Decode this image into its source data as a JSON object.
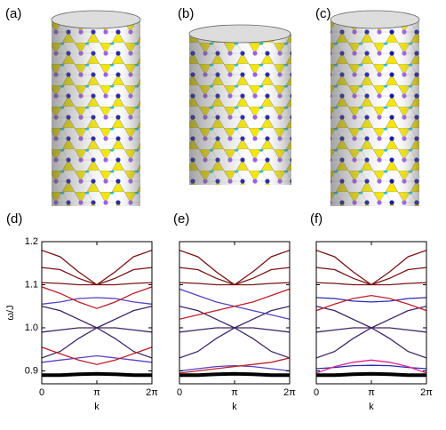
{
  "panel_labels": [
    "(a)",
    "(b)",
    "(c)"
  ],
  "chart_data": [
    {
      "type": "line",
      "label": "(d)",
      "x_label": "k",
      "y_label": "ω/J",
      "x": [
        0,
        1.047,
        2.094,
        3.142,
        4.189,
        5.236,
        6.283
      ],
      "xlim": [
        0,
        6.283
      ],
      "xticks": [
        0,
        {
          "value": 3.142,
          "label": "π"
        },
        {
          "value": 6.283,
          "label": "2π"
        }
      ],
      "ylim": [
        0.87,
        1.2
      ],
      "yticks": [
        0.9,
        {
          "value": 1,
          "label": "1.0"
        },
        1.1,
        1.2
      ],
      "show_ytick_labels": true,
      "series": [
        {
          "color": "#7a1414",
          "values": [
            1.18,
            1.165,
            1.13,
            1.1,
            1.13,
            1.165,
            1.18
          ]
        },
        {
          "color": "#7a1414",
          "values": [
            1.14,
            1.135,
            1.115,
            1.1,
            1.115,
            1.135,
            1.14
          ]
        },
        {
          "color": "#7a1414",
          "values": [
            1.105,
            1.103,
            1.1,
            1.1,
            1.1,
            1.103,
            1.105
          ]
        },
        {
          "color": "#3d2466",
          "values": [
            1.05,
            1.04,
            1.02,
            1.0,
            1.02,
            1.04,
            1.05
          ]
        },
        {
          "color": "#3d2466",
          "values": [
            0.99,
            0.995,
            1.0,
            1.0,
            1.0,
            0.995,
            0.99
          ]
        },
        {
          "color": "#3d2466",
          "values": [
            0.93,
            0.945,
            0.975,
            1.0,
            0.975,
            0.945,
            0.93
          ]
        },
        {
          "color": "#000000",
          "values": [
            0.89,
            0.89,
            0.892,
            0.893,
            0.892,
            0.89,
            0.89
          ]
        },
        {
          "color": "#5a3fc0",
          "values": [
            1.055,
            1.06,
            1.068,
            1.07,
            1.068,
            1.06,
            1.055
          ]
        },
        {
          "color": "#c0202a",
          "values": [
            1.095,
            1.08,
            1.06,
            1.045,
            1.06,
            1.08,
            1.095
          ]
        },
        {
          "color": "#5a3fc0",
          "values": [
            0.92,
            0.925,
            0.93,
            0.935,
            0.93,
            0.925,
            0.92
          ]
        },
        {
          "color": "#c0202a",
          "values": [
            0.955,
            0.94,
            0.925,
            0.915,
            0.925,
            0.94,
            0.955
          ]
        }
      ]
    },
    {
      "type": "line",
      "label": "(e)",
      "x_label": "k",
      "x": [
        0,
        1.047,
        2.094,
        3.142,
        4.189,
        5.236,
        6.283
      ],
      "xlim": [
        0,
        6.283
      ],
      "xticks": [
        0,
        {
          "value": 3.142,
          "label": "π"
        },
        {
          "value": 6.283,
          "label": "2π"
        }
      ],
      "ylim": [
        0.87,
        1.2
      ],
      "yticks": [
        0.9,
        1,
        1.1,
        1.2
      ],
      "show_ytick_labels": false,
      "series": [
        {
          "color": "#7a1414",
          "values": [
            1.18,
            1.165,
            1.13,
            1.1,
            1.13,
            1.165,
            1.18
          ]
        },
        {
          "color": "#7a1414",
          "values": [
            1.14,
            1.135,
            1.115,
            1.1,
            1.115,
            1.135,
            1.14
          ]
        },
        {
          "color": "#7a1414",
          "values": [
            1.105,
            1.103,
            1.1,
            1.1,
            1.1,
            1.103,
            1.105
          ]
        },
        {
          "color": "#3d2466",
          "values": [
            1.05,
            1.04,
            1.02,
            1.0,
            1.02,
            1.04,
            1.05
          ]
        },
        {
          "color": "#3d2466",
          "values": [
            0.99,
            0.995,
            1.0,
            1.0,
            1.0,
            0.995,
            0.99
          ]
        },
        {
          "color": "#3d2466",
          "values": [
            0.93,
            0.945,
            0.975,
            1.0,
            0.975,
            0.945,
            0.93
          ]
        },
        {
          "color": "#000000",
          "values": [
            0.89,
            0.89,
            0.892,
            0.893,
            0.892,
            0.89,
            0.89
          ]
        },
        {
          "color": "#5a3fc0",
          "values": [
            1.09,
            1.075,
            1.06,
            1.05,
            1.04,
            1.03,
            1.02
          ]
        },
        {
          "color": "#c0202a",
          "values": [
            1.02,
            1.03,
            1.04,
            1.05,
            1.06,
            1.075,
            1.09
          ]
        },
        {
          "color": "#5a3fc0",
          "values": [
            0.9,
            0.905,
            0.91,
            0.912,
            0.91,
            0.905,
            0.9
          ]
        },
        {
          "color": "#c0202a",
          "values": [
            0.895,
            0.9,
            0.905,
            0.91,
            0.915,
            0.92,
            0.93
          ]
        }
      ]
    },
    {
      "type": "line",
      "label": "(f)",
      "x_label": "k",
      "x": [
        0,
        1.047,
        2.094,
        3.142,
        4.189,
        5.236,
        6.283
      ],
      "xlim": [
        0,
        6.283
      ],
      "xticks": [
        0,
        {
          "value": 3.142,
          "label": "π"
        },
        {
          "value": 6.283,
          "label": "2π"
        }
      ],
      "ylim": [
        0.87,
        1.2
      ],
      "yticks": [
        0.9,
        1,
        1.1,
        1.2
      ],
      "show_ytick_labels": false,
      "series": [
        {
          "color": "#7a1414",
          "values": [
            1.18,
            1.165,
            1.13,
            1.1,
            1.13,
            1.165,
            1.18
          ]
        },
        {
          "color": "#7a1414",
          "values": [
            1.14,
            1.135,
            1.115,
            1.1,
            1.115,
            1.135,
            1.14
          ]
        },
        {
          "color": "#7a1414",
          "values": [
            1.105,
            1.103,
            1.1,
            1.1,
            1.1,
            1.103,
            1.105
          ]
        },
        {
          "color": "#3d2466",
          "values": [
            1.05,
            1.04,
            1.02,
            1.0,
            1.02,
            1.04,
            1.05
          ]
        },
        {
          "color": "#3d2466",
          "values": [
            0.99,
            0.995,
            1.0,
            1.0,
            1.0,
            0.995,
            0.99
          ]
        },
        {
          "color": "#3d2466",
          "values": [
            0.93,
            0.945,
            0.975,
            1.0,
            0.975,
            0.945,
            0.93
          ]
        },
        {
          "color": "#000000",
          "values": [
            0.89,
            0.89,
            0.892,
            0.893,
            0.892,
            0.89,
            0.89
          ]
        },
        {
          "color": "#2a2ab0",
          "values": [
            1.07,
            1.068,
            1.062,
            1.06,
            1.062,
            1.068,
            1.07
          ]
        },
        {
          "color": "#c0202a",
          "values": [
            1.04,
            1.055,
            1.068,
            1.075,
            1.068,
            1.055,
            1.04
          ]
        },
        {
          "color": "#2a2ab0",
          "values": [
            0.905,
            0.908,
            0.912,
            0.913,
            0.912,
            0.908,
            0.905
          ]
        },
        {
          "color": "#e0208a",
          "values": [
            0.895,
            0.91,
            0.92,
            0.925,
            0.92,
            0.91,
            0.895
          ]
        }
      ]
    }
  ]
}
